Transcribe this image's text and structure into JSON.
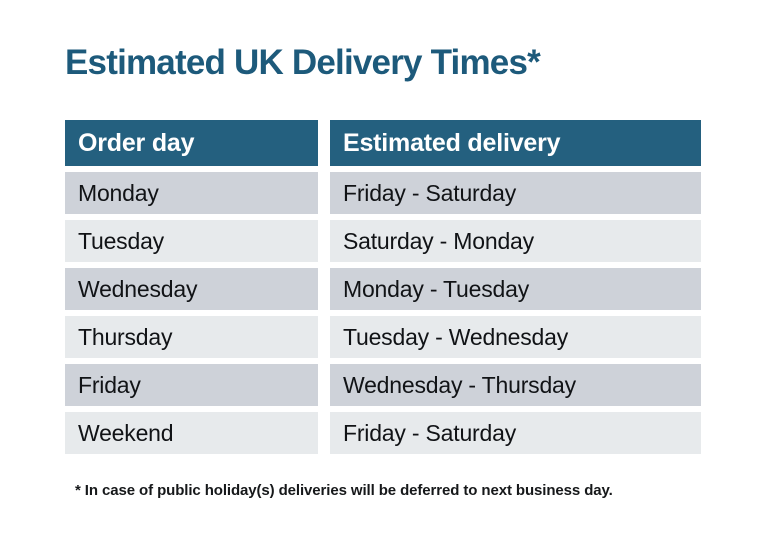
{
  "page": {
    "title": "Estimated UK Delivery Times*",
    "footnote": "* In case of public holiday(s) deliveries will be deferred to next business day."
  },
  "table": {
    "headers": [
      "Order day",
      "Estimated delivery"
    ],
    "rows": [
      {
        "order_day": "Monday",
        "estimated_delivery": "Friday - Saturday"
      },
      {
        "order_day": "Tuesday",
        "estimated_delivery": "Saturday - Monday"
      },
      {
        "order_day": "Wednesday",
        "estimated_delivery": "Monday - Tuesday"
      },
      {
        "order_day": "Thursday",
        "estimated_delivery": "Tuesday - Wednesday"
      },
      {
        "order_day": "Friday",
        "estimated_delivery": "Wednesday - Thursday"
      },
      {
        "order_day": "Weekend",
        "estimated_delivery": "Friday - Saturday"
      }
    ]
  },
  "colors": {
    "accent": "#24607F",
    "title": "#1D5A7B",
    "row_dark": "#CED2D9",
    "row_light": "#E7EAEC",
    "text": "#111316"
  }
}
